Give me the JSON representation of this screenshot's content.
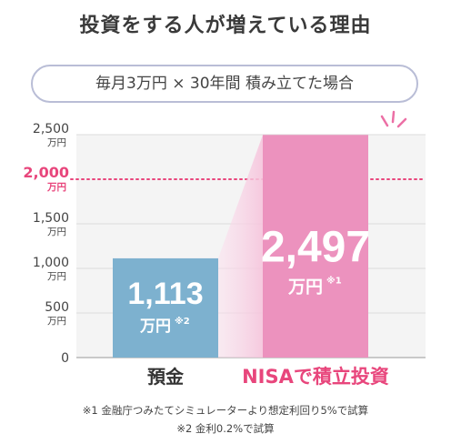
{
  "title": "投資をする人が増えている理由",
  "subtitle": "毎月3万円 × 30年間 積み立てた場合",
  "colors": {
    "savings": "#7db1cf",
    "nisa": "#ec92be",
    "highlight": "#e8467c",
    "axis_text": "#444444"
  },
  "chart_data": {
    "type": "bar",
    "categories": [
      "預金",
      "NISAで積立投資"
    ],
    "values": [
      1113,
      2497
    ],
    "value_labels": [
      "1,113",
      "2,497"
    ],
    "value_unit": "万円",
    "value_marks": [
      "※2",
      "※1"
    ],
    "ylim": [
      0,
      2500
    ],
    "yticks": [
      {
        "value": 0,
        "label": "0",
        "unit": ""
      },
      {
        "value": 500,
        "label": "500",
        "unit": "万円"
      },
      {
        "value": 1000,
        "label": "1,000",
        "unit": "万円"
      },
      {
        "value": 1500,
        "label": "1,500",
        "unit": "万円"
      },
      {
        "value": 2000,
        "label": "2,000",
        "unit": "万円",
        "highlight": true
      },
      {
        "value": 2500,
        "label": "2,500",
        "unit": "万円"
      }
    ],
    "reference_line": 2000,
    "grid": true,
    "legend": "none"
  },
  "notes": [
    "※1 金融庁つみたてシミュレーターより想定利回り5%で試算",
    "※2 金利0.2%で試算"
  ]
}
